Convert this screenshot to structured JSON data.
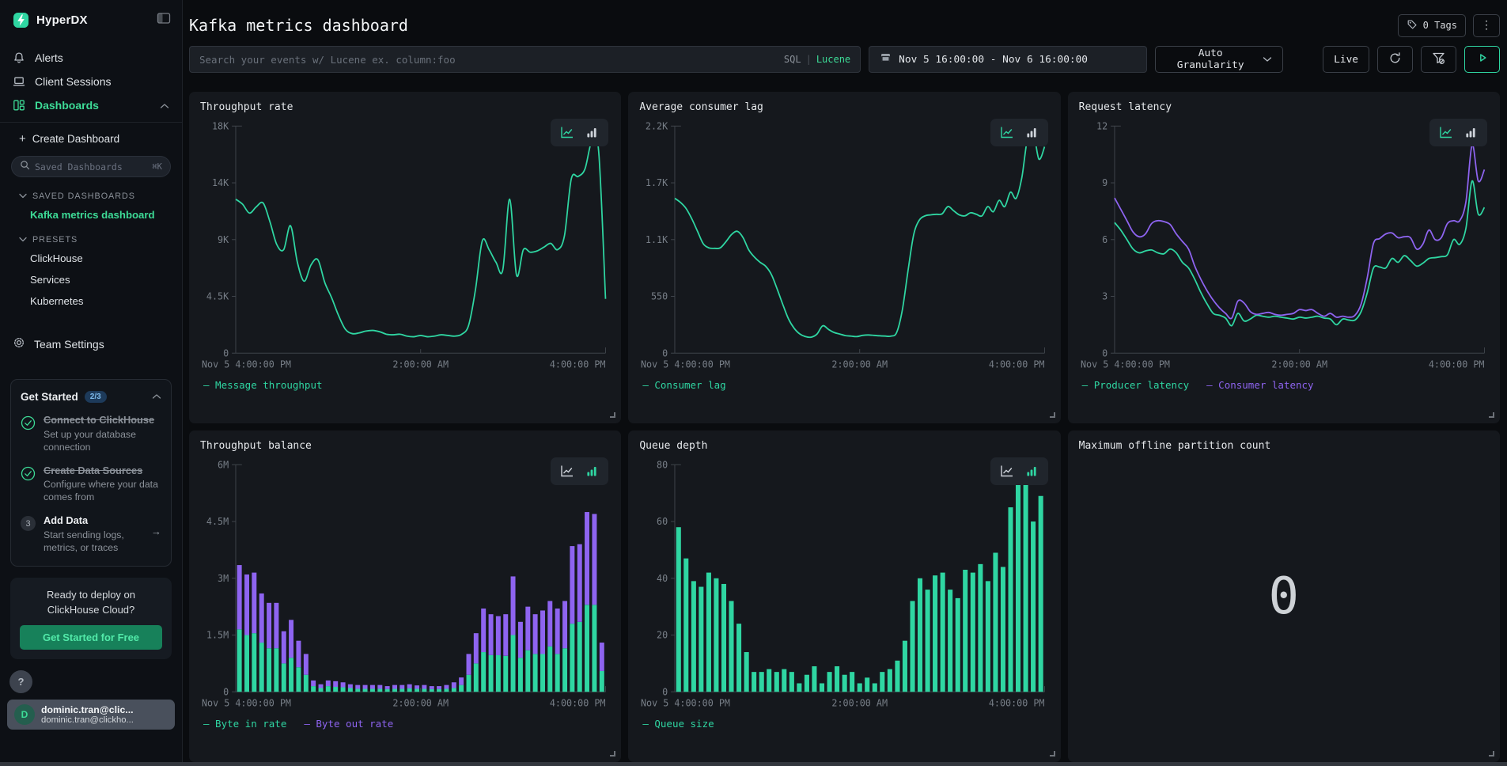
{
  "sidebar": {
    "brand": "HyperDX",
    "nav": [
      {
        "label": "Alerts"
      },
      {
        "label": "Client Sessions"
      },
      {
        "label": "Dashboards"
      }
    ],
    "create_dashboard": "Create Dashboard",
    "plus": "+",
    "search_placeholder": "Saved Dashboards",
    "shortcut": "⌘K",
    "saved_header": "SAVED DASHBOARDS",
    "saved_item": "Kafka metrics dashboard",
    "presets_header": "PRESETS",
    "presets": [
      "ClickHouse",
      "Services",
      "Kubernetes"
    ],
    "team_settings": "Team Settings",
    "get_started": {
      "title": "Get Started",
      "badge": "2/3",
      "steps": [
        {
          "title": "Connect to ClickHouse",
          "desc": "Set up your database connection"
        },
        {
          "title": "Create Data Sources",
          "desc": "Configure where your data comes from"
        },
        {
          "title": "Add Data",
          "desc": "Start sending logs, metrics, or traces",
          "number": "3",
          "arrow": "→"
        }
      ]
    },
    "promo": {
      "line1": "Ready to deploy on",
      "line2": "ClickHouse Cloud?",
      "cta": "Get Started for Free"
    },
    "help": "?",
    "user": {
      "initial": "D",
      "name": "dominic.tran@clic...",
      "email": "dominic.tran@clickho..."
    }
  },
  "header": {
    "title": "Kafka metrics dashboard",
    "tags_label": "0 Tags",
    "menu": "⋮"
  },
  "toolbar": {
    "search_placeholder": "Search your events w/ Lucene ex. column:foo",
    "sql": "SQL",
    "pipe": "|",
    "lucene": "Lucene",
    "date_range": "Nov 5 16:00:00 - Nov 6 16:00:00",
    "granularity": "Auto Granularity",
    "live": "Live"
  },
  "colors": {
    "green": "#2fd6a2",
    "purple": "#8e64f0",
    "axis": "#3f444b",
    "tick_text": "#777e87"
  },
  "chart_data": [
    {
      "id": "throughput-rate",
      "type": "line",
      "title": "Throughput rate",
      "ymax": 18,
      "ytick_labels": [
        "18K",
        "14K",
        "9K",
        "4.5K",
        "0"
      ],
      "x_labels": [
        "Nov 5 4:00:00 PM",
        "2:00:00 AM",
        "4:00:00 PM"
      ],
      "active_view": "line",
      "series": [
        {
          "name": "Message throughput",
          "color": "green",
          "values": [
            12.2,
            11.8,
            11.1,
            11.6,
            11.9,
            10.4,
            8.6,
            8.2,
            10.1,
            7.2,
            5.7,
            7.0,
            7.4,
            5.6,
            4.4,
            3.0,
            1.9,
            1.55,
            1.6,
            1.75,
            1.8,
            1.7,
            1.5,
            1.45,
            1.5,
            1.35,
            1.3,
            1.4,
            1.3,
            1.35,
            1.45,
            1.4,
            1.35,
            1.5,
            2.2,
            5.0,
            8.9,
            8.2,
            7.2,
            6.6,
            12.2,
            6.2,
            8.2,
            8.0,
            8.1,
            8.4,
            8.7,
            8.2,
            9.3,
            13.8,
            14.0,
            14.6,
            16.8,
            16.0,
            4.3
          ]
        }
      ]
    },
    {
      "id": "avg-consumer-lag",
      "type": "line",
      "title": "Average consumer lag",
      "ymax": 2200,
      "ytick_labels": [
        "2.2K",
        "1.7K",
        "1.1K",
        "550",
        "0"
      ],
      "x_labels": [
        "Nov 5 4:00:00 PM",
        "2:00:00 AM",
        "4:00:00 PM"
      ],
      "active_view": "line",
      "series": [
        {
          "name": "Consumer lag",
          "color": "green",
          "values": [
            1500,
            1460,
            1400,
            1300,
            1180,
            1060,
            1020,
            1015,
            1020,
            1080,
            1150,
            1180,
            1120,
            1000,
            930,
            880,
            840,
            760,
            620,
            470,
            330,
            240,
            185,
            160,
            155,
            185,
            265,
            230,
            200,
            185,
            170,
            165,
            160,
            172,
            176,
            172,
            168,
            165,
            165,
            200,
            420,
            800,
            1150,
            1290,
            1330,
            1340,
            1345,
            1350,
            1420,
            1380,
            1340,
            1330,
            1360,
            1345,
            1330,
            1420,
            1370,
            1480,
            1420,
            1560,
            1500,
            1700,
            2080,
            2150,
            1880,
            2000
          ]
        }
      ]
    },
    {
      "id": "request-latency",
      "type": "line",
      "title": "Request latency",
      "ymax": 12,
      "ytick_labels": [
        "12",
        "9",
        "6",
        "3",
        "0"
      ],
      "x_labels": [
        "Nov 5 4:00:00 PM",
        "2:00:00 AM",
        "4:00:00 PM"
      ],
      "active_view": "line",
      "series": [
        {
          "name": "Producer latency",
          "color": "green",
          "values": [
            6.9,
            6.5,
            6.0,
            5.5,
            5.3,
            5.4,
            5.45,
            5.3,
            5.25,
            5.5,
            5.3,
            4.8,
            4.5,
            3.9,
            3.2,
            2.6,
            2.1,
            2.0,
            1.85,
            1.45,
            2.1,
            1.7,
            1.8,
            2.0,
            1.95,
            1.9,
            1.95,
            1.9,
            1.85,
            1.8,
            1.9,
            1.85,
            1.9,
            1.95,
            1.85,
            1.8,
            1.5,
            1.8,
            1.75,
            1.75,
            2.2,
            3.2,
            4.5,
            4.55,
            4.5,
            5.0,
            4.8,
            5.15,
            4.9,
            4.6,
            4.75,
            5.0,
            5.05,
            5.1,
            5.2,
            6.0,
            5.75,
            6.6,
            9.1,
            7.35,
            7.7
          ]
        },
        {
          "name": "Consumer latency",
          "color": "purple",
          "values": [
            8.2,
            7.6,
            7.0,
            6.4,
            6.15,
            6.3,
            6.85,
            7.0,
            6.95,
            6.8,
            6.3,
            5.9,
            5.5,
            4.6,
            3.9,
            3.3,
            2.8,
            2.4,
            2.1,
            1.85,
            2.75,
            2.65,
            2.2,
            2.05,
            2.1,
            2.15,
            2.05,
            2.0,
            2.05,
            2.1,
            2.3,
            2.25,
            2.3,
            2.1,
            1.95,
            2.1,
            1.9,
            1.95,
            1.9,
            2.0,
            2.6,
            4.0,
            5.8,
            6.05,
            6.3,
            6.35,
            6.1,
            6.15,
            6.1,
            5.5,
            5.75,
            6.5,
            6.0,
            6.1,
            6.85,
            7.0,
            7.0,
            8.0,
            11.0,
            9.1,
            9.7
          ]
        }
      ]
    },
    {
      "id": "throughput-balance",
      "type": "bar",
      "stacked": true,
      "title": "Throughput balance",
      "ymax": 6,
      "ytick_labels": [
        "6M",
        "4.5M",
        "3M",
        "1.5M",
        "0"
      ],
      "x_labels": [
        "Nov 5 4:00:00 PM",
        "2:00:00 AM",
        "4:00:00 PM"
      ],
      "active_view": "bar",
      "series": [
        {
          "name": "Byte in rate",
          "color": "green",
          "values": [
            1.65,
            1.5,
            1.55,
            1.3,
            1.15,
            1.15,
            0.75,
            0.9,
            0.65,
            0.45,
            0.15,
            0.1,
            0.15,
            0.13,
            0.12,
            0.1,
            0.08,
            0.08,
            0.08,
            0.08,
            0.07,
            0.08,
            0.08,
            0.09,
            0.08,
            0.08,
            0.07,
            0.07,
            0.08,
            0.1,
            0.18,
            0.45,
            0.75,
            1.05,
            0.97,
            0.97,
            0.95,
            1.5,
            0.9,
            1.1,
            1.0,
            1.0,
            1.2,
            1.0,
            1.15,
            1.8,
            1.85,
            2.3,
            2.3,
            0.55
          ]
        },
        {
          "name": "Byte out rate",
          "color": "purple",
          "values": [
            1.7,
            1.6,
            1.6,
            1.3,
            1.2,
            1.2,
            0.85,
            1.0,
            0.7,
            0.55,
            0.15,
            0.1,
            0.15,
            0.15,
            0.13,
            0.1,
            0.1,
            0.1,
            0.1,
            0.1,
            0.08,
            0.1,
            0.1,
            0.11,
            0.09,
            0.1,
            0.08,
            0.08,
            0.1,
            0.15,
            0.2,
            0.55,
            0.8,
            1.15,
            1.08,
            1.03,
            1.1,
            1.55,
            0.95,
            1.15,
            1.05,
            1.15,
            1.2,
            1.2,
            1.25,
            2.05,
            2.05,
            2.45,
            2.4,
            0.75
          ]
        }
      ]
    },
    {
      "id": "queue-depth",
      "type": "bar",
      "title": "Queue depth",
      "ymax": 80,
      "ytick_labels": [
        "80",
        "60",
        "40",
        "20",
        "0"
      ],
      "x_labels": [
        "Nov 5 4:00:00 PM",
        "2:00:00 AM",
        "4:00:00 PM"
      ],
      "active_view": "bar",
      "series": [
        {
          "name": "Queue size",
          "color": "green",
          "values": [
            58,
            47,
            39,
            37,
            42,
            40,
            38,
            32,
            24,
            14,
            7,
            7,
            8,
            7,
            8,
            7,
            3,
            6,
            9,
            3,
            7,
            9,
            6,
            7,
            3,
            5,
            3,
            7,
            8,
            11,
            18,
            32,
            40,
            36,
            41,
            42,
            36,
            33,
            43,
            42,
            45,
            39,
            49,
            44,
            65,
            73,
            73,
            60,
            69
          ]
        }
      ]
    },
    {
      "id": "max-offline-partition-count",
      "type": "number",
      "title": "Maximum offline partition count",
      "value": "0"
    }
  ]
}
